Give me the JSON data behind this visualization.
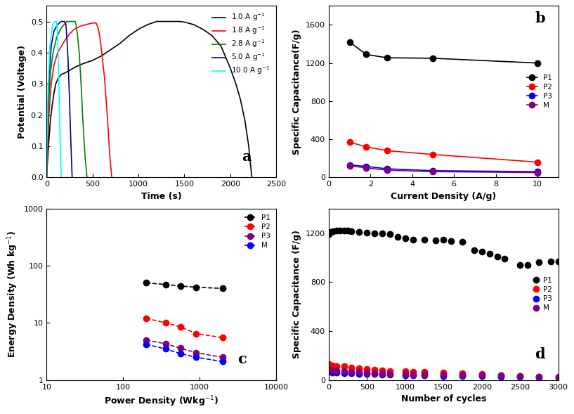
{
  "panel_a": {
    "title": "a",
    "xlabel": "Time (s)",
    "ylabel": "Potential (Voltage)",
    "xlim": [
      0,
      2500
    ],
    "ylim": [
      0.0,
      0.55
    ],
    "yticks": [
      0.0,
      0.1,
      0.2,
      0.3,
      0.4,
      0.5
    ],
    "xticks": [
      0,
      500,
      1000,
      1500,
      2000,
      2500
    ],
    "curves": {
      "1.0": {
        "color": "black",
        "x": [
          0,
          20,
          40,
          60,
          80,
          100,
          130,
          160,
          200,
          260,
          320,
          400,
          500,
          600,
          700,
          800,
          900,
          1000,
          1100,
          1200,
          1350,
          1430,
          1450,
          1500,
          1600,
          1700,
          1800,
          1900,
          2000,
          2060,
          2110,
          2160,
          2200,
          2220,
          2235
        ],
        "y": [
          0.0,
          0.1,
          0.18,
          0.23,
          0.27,
          0.3,
          0.32,
          0.33,
          0.335,
          0.345,
          0.355,
          0.365,
          0.375,
          0.39,
          0.41,
          0.43,
          0.455,
          0.475,
          0.49,
          0.5,
          0.5,
          0.5,
          0.5,
          0.498,
          0.49,
          0.475,
          0.455,
          0.42,
          0.35,
          0.3,
          0.25,
          0.18,
          0.1,
          0.04,
          0.0
        ]
      },
      "1.8": {
        "color": "red",
        "x": [
          0,
          10,
          25,
          50,
          80,
          120,
          160,
          200,
          250,
          300,
          370,
          430,
          500,
          540,
          560,
          580,
          600,
          630,
          660,
          690,
          710
        ],
        "y": [
          0.0,
          0.1,
          0.2,
          0.3,
          0.36,
          0.4,
          0.42,
          0.44,
          0.46,
          0.475,
          0.485,
          0.49,
          0.495,
          0.495,
          0.48,
          0.45,
          0.4,
          0.32,
          0.2,
          0.06,
          0.0
        ]
      },
      "2.8": {
        "color": "green",
        "x": [
          0,
          8,
          20,
          40,
          70,
          110,
          160,
          220,
          280,
          310,
          320,
          335,
          355,
          375,
          395,
          420,
          440
        ],
        "y": [
          0.0,
          0.12,
          0.22,
          0.33,
          0.4,
          0.45,
          0.48,
          0.5,
          0.5,
          0.5,
          0.49,
          0.46,
          0.4,
          0.3,
          0.18,
          0.06,
          0.0
        ]
      },
      "5.0": {
        "color": "#00008B",
        "x": [
          0,
          5,
          12,
          25,
          50,
          80,
          120,
          160,
          195,
          210,
          220,
          233,
          248,
          263,
          278
        ],
        "y": [
          0.0,
          0.1,
          0.2,
          0.32,
          0.42,
          0.47,
          0.49,
          0.5,
          0.5,
          0.49,
          0.45,
          0.38,
          0.26,
          0.12,
          0.0
        ]
      },
      "10.0": {
        "color": "cyan",
        "x": [
          0,
          3,
          8,
          18,
          35,
          65,
          90,
          105,
          112,
          120,
          130,
          140,
          150,
          160
        ],
        "y": [
          0.0,
          0.08,
          0.18,
          0.3,
          0.42,
          0.49,
          0.5,
          0.5,
          0.49,
          0.44,
          0.35,
          0.22,
          0.08,
          0.0
        ]
      }
    },
    "legend_labels": [
      "1.0 A g$^{-1}$",
      "1.8 A g$^{-1}$",
      "2.8 A g$^{-1}$",
      "5.0 A g$^{-1}$",
      "10.0 A g$^{-1}$"
    ],
    "legend_colors": [
      "black",
      "red",
      "green",
      "#00008B",
      "cyan"
    ]
  },
  "panel_b": {
    "title": "b",
    "xlabel": "Current Density (A/g)",
    "ylabel": "Specific Capacitance(F/g)",
    "xlim": [
      0,
      11
    ],
    "ylim": [
      0,
      1800
    ],
    "xticks": [
      0,
      2,
      4,
      6,
      8,
      10
    ],
    "yticks": [
      0,
      400,
      800,
      1200,
      1600
    ],
    "P1_x": [
      1.0,
      1.8,
      2.8,
      5.0,
      10.0
    ],
    "P1_y": [
      1420,
      1290,
      1255,
      1250,
      1200
    ],
    "P2_x": [
      1.0,
      1.8,
      2.8,
      5.0,
      10.0
    ],
    "P2_y": [
      370,
      320,
      280,
      240,
      160
    ],
    "P3_x": [
      1.0,
      1.8,
      2.8,
      5.0,
      10.0
    ],
    "P3_y": [
      130,
      115,
      90,
      70,
      60
    ],
    "M_x": [
      1.0,
      1.8,
      2.8,
      5.0,
      10.0
    ],
    "M_y": [
      120,
      100,
      75,
      60,
      50
    ],
    "series_order": [
      "P1",
      "P2",
      "P3",
      "M"
    ],
    "colors": {
      "P1": "black",
      "P2": "red",
      "P3": "blue",
      "M": "purple"
    }
  },
  "panel_c": {
    "title": "c",
    "xlabel": "Power Density (Wkg$^{-1}$)",
    "ylabel": "Energy Density (Wh kg$^{-1}$)",
    "xlim": [
      10,
      10000
    ],
    "ylim": [
      1,
      1000
    ],
    "P1_x": [
      200,
      360,
      560,
      900,
      2000
    ],
    "P1_y": [
      50,
      47,
      44,
      42,
      40
    ],
    "P2_x": [
      200,
      360,
      560,
      900,
      2000
    ],
    "P2_y": [
      12,
      10,
      8.5,
      6.5,
      5.5
    ],
    "P3_x": [
      200,
      360,
      560,
      900,
      2000
    ],
    "P3_y": [
      5.0,
      4.3,
      3.6,
      3.0,
      2.5
    ],
    "M_x": [
      200,
      360,
      560,
      900,
      2000
    ],
    "M_y": [
      4.2,
      3.5,
      2.9,
      2.5,
      2.1
    ],
    "series_order": [
      "P1",
      "P2",
      "P3",
      "M"
    ],
    "colors": {
      "P1": "black",
      "P2": "red",
      "P3": "purple",
      "M": "blue"
    }
  },
  "panel_d": {
    "title": "d",
    "xlabel": "Number of cycles",
    "ylabel": "Specific Capacitance (F/g)",
    "xlim": [
      0,
      3000
    ],
    "ylim": [
      0,
      1400
    ],
    "xticks": [
      0,
      500,
      1000,
      1500,
      2000,
      2500,
      3000
    ],
    "yticks": [
      0,
      400,
      800,
      1200
    ],
    "P1_x": [
      1,
      30,
      60,
      100,
      150,
      200,
      250,
      300,
      400,
      500,
      600,
      700,
      800,
      900,
      1000,
      1100,
      1250,
      1400,
      1500,
      1600,
      1750,
      1900,
      2000,
      2100,
      2200,
      2300,
      2500,
      2600,
      2750,
      2900,
      3000
    ],
    "P1_y": [
      1190,
      1210,
      1215,
      1218,
      1220,
      1220,
      1220,
      1215,
      1210,
      1205,
      1200,
      1195,
      1190,
      1170,
      1155,
      1148,
      1145,
      1140,
      1145,
      1135,
      1130,
      1060,
      1050,
      1030,
      1010,
      990,
      940,
      940,
      960,
      970,
      970
    ],
    "P2_x": [
      1,
      50,
      100,
      200,
      300,
      400,
      500,
      600,
      700,
      800,
      1000,
      1100,
      1250,
      1500,
      1750,
      2000,
      2250,
      2500,
      2750,
      3000
    ],
    "P2_y": [
      130,
      120,
      115,
      110,
      100,
      95,
      90,
      85,
      80,
      75,
      70,
      68,
      65,
      60,
      55,
      50,
      40,
      35,
      25,
      20
    ],
    "P3_x": [
      1,
      50,
      100,
      200,
      300,
      400,
      500,
      600,
      700,
      800,
      1000,
      1100,
      1250,
      1500,
      1750,
      2000,
      2250,
      2500,
      2750,
      3000
    ],
    "P3_y": [
      65,
      62,
      60,
      58,
      55,
      52,
      50,
      48,
      45,
      43,
      40,
      38,
      36,
      34,
      32,
      30,
      28,
      25,
      22,
      20
    ],
    "M_x": [
      1,
      50,
      100,
      200,
      300,
      400,
      500,
      600,
      700,
      800,
      1000,
      1100,
      1250,
      1500,
      1750,
      2000,
      2250,
      2500,
      2750,
      3000
    ],
    "M_y": [
      85,
      80,
      78,
      72,
      68,
      65,
      62,
      58,
      55,
      52,
      48,
      46,
      44,
      42,
      40,
      38,
      36,
      32,
      28,
      25
    ],
    "series_order": [
      "P1",
      "P2",
      "P3",
      "M"
    ],
    "colors": {
      "P1": "black",
      "P2": "red",
      "P3": "blue",
      "M": "purple"
    }
  }
}
